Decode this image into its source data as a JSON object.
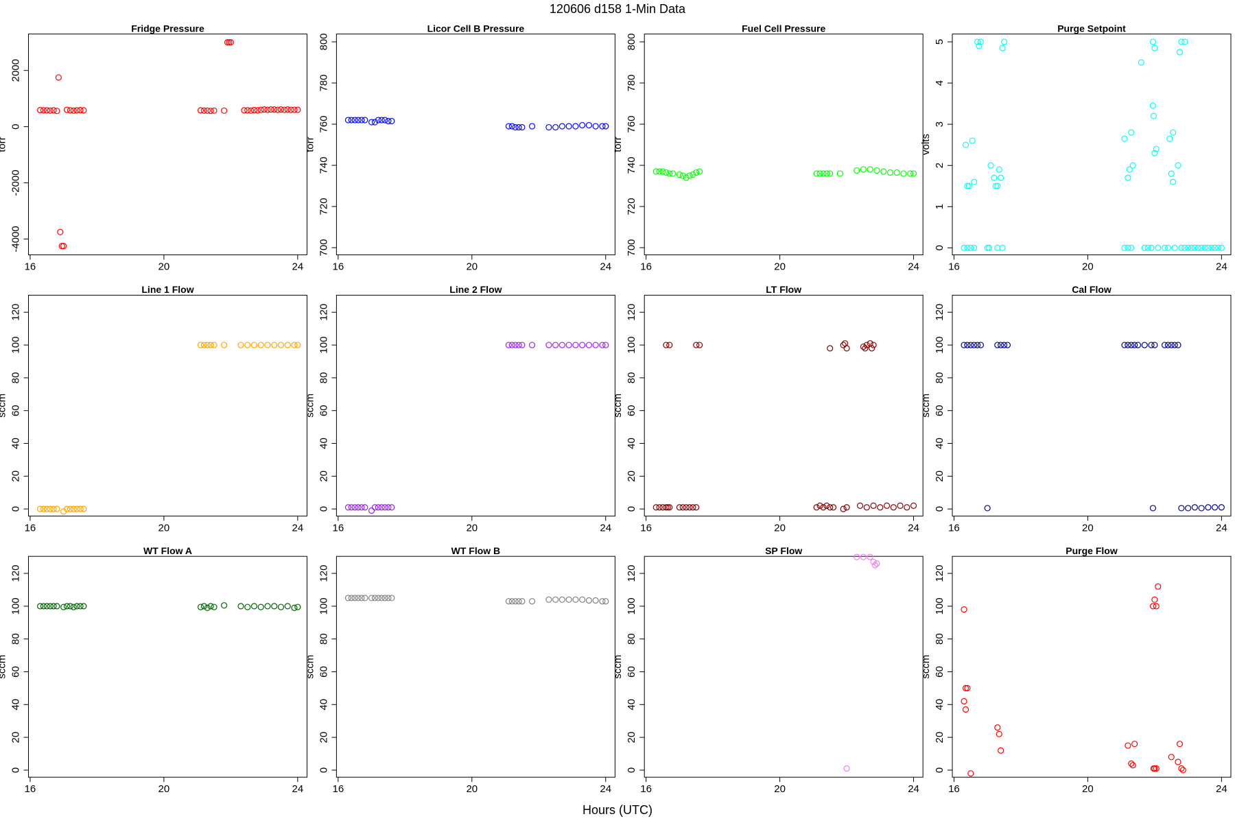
{
  "title": "120606   d158   1-Min Data",
  "xlabel": "Hours (UTC)",
  "chart_data": [
    {
      "type": "scatter",
      "title": "Fridge Pressure",
      "ylabel": "torr",
      "color": "#ff0000",
      "x": [
        16.3,
        16.4,
        16.5,
        16.6,
        16.7,
        16.8,
        16.85,
        16.9,
        16.95,
        17.0,
        17.1,
        17.2,
        17.3,
        17.4,
        17.5,
        17.6,
        21.1,
        21.2,
        21.3,
        21.4,
        21.5,
        21.8,
        21.9,
        21.95,
        22.0,
        22.4,
        22.5,
        22.6,
        22.7,
        22.8,
        22.9,
        23.0,
        23.1,
        23.2,
        23.3,
        23.4,
        23.5,
        23.6,
        23.7,
        23.8,
        23.9,
        24.0
      ],
      "y": [
        590,
        580,
        580,
        570,
        580,
        560,
        1750,
        -3750,
        -4250,
        -4250,
        600,
        580,
        570,
        580,
        590,
        580,
        580,
        570,
        570,
        560,
        570,
        570,
        3000,
        3000,
        3000,
        580,
        580,
        570,
        590,
        580,
        600,
        610,
        600,
        610,
        610,
        600,
        610,
        600,
        610,
        600,
        600,
        600
      ],
      "xlim": [
        15.95,
        24.28
      ],
      "xticks": [
        16,
        20,
        24
      ],
      "ylim": [
        -4563,
        3296
      ],
      "yticks": [
        -4000,
        -2000,
        0,
        2000
      ]
    },
    {
      "type": "scatter",
      "title": "Licor Cell B Pressure",
      "ylabel": "torr",
      "color": "#0000ff",
      "x": [
        16.3,
        16.4,
        16.5,
        16.6,
        16.7,
        16.8,
        17.0,
        17.1,
        17.2,
        17.3,
        17.4,
        17.5,
        17.6,
        21.1,
        21.2,
        21.3,
        21.4,
        21.5,
        21.8,
        22.3,
        22.5,
        22.7,
        22.9,
        23.1,
        23.3,
        23.5,
        23.7,
        23.9,
        24.0
      ],
      "y": [
        762,
        762,
        762,
        762,
        762,
        762,
        761,
        761,
        762,
        762,
        762,
        761.5,
        761.5,
        759,
        759,
        758.5,
        758.5,
        758.5,
        759,
        758.5,
        758.5,
        759,
        759,
        759,
        759.5,
        759.5,
        759,
        759,
        759
      ],
      "xlim": [
        15.95,
        24.28
      ],
      "xticks": [
        16,
        20,
        24
      ],
      "ylim": [
        696.5,
        803.8
      ],
      "yticks": [
        700,
        720,
        740,
        760,
        780,
        800
      ]
    },
    {
      "type": "scatter",
      "title": "Fuel Cell Pressure",
      "ylabel": "torr",
      "color": "#00ff00",
      "x": [
        16.3,
        16.4,
        16.5,
        16.6,
        16.7,
        16.8,
        17.0,
        17.1,
        17.2,
        17.3,
        17.4,
        17.5,
        17.6,
        21.1,
        21.2,
        21.3,
        21.4,
        21.5,
        21.8,
        22.3,
        22.5,
        22.7,
        22.9,
        23.1,
        23.3,
        23.5,
        23.7,
        23.9,
        24.0
      ],
      "y": [
        737,
        737,
        737,
        736.5,
        736,
        736,
        735.5,
        735,
        734,
        735,
        735.5,
        736.5,
        737,
        736,
        736,
        736,
        736,
        736,
        736,
        737.5,
        738,
        738,
        737.5,
        737,
        736.5,
        736.5,
        736,
        736,
        736
      ],
      "xlim": [
        15.95,
        24.28
      ],
      "xticks": [
        16,
        20,
        24
      ],
      "ylim": [
        696.5,
        803.8
      ],
      "yticks": [
        700,
        720,
        740,
        760,
        780,
        800
      ]
    },
    {
      "type": "scatter",
      "title": "Purge Setpoint",
      "ylabel": "volts",
      "color": "#00ffff",
      "x": [
        16.3,
        16.4,
        16.5,
        16.6,
        16.35,
        16.4,
        16.45,
        16.55,
        16.6,
        16.7,
        16.8,
        16.75,
        17.0,
        17.05,
        17.1,
        17.2,
        17.25,
        17.3,
        17.35,
        17.4,
        17.45,
        17.5,
        17.45,
        17.3,
        21.1,
        21.2,
        21.3,
        21.1,
        21.2,
        21.25,
        21.3,
        21.35,
        21.6,
        21.7,
        21.8,
        21.9,
        21.95,
        21.97,
        22.0,
        22.05,
        21.95,
        22.0,
        22.1,
        22.3,
        22.4,
        22.45,
        22.55,
        22.5,
        22.55,
        22.7,
        22.75,
        22.8,
        22.9,
        22.6,
        22.8,
        22.9,
        23.0,
        23.1,
        23.2,
        23.3,
        23.4,
        23.5,
        23.6,
        23.7,
        23.8,
        23.9,
        24.0
      ],
      "y": [
        0,
        0,
        0,
        0,
        2.5,
        1.5,
        1.5,
        2.6,
        1.6,
        5,
        5,
        4.9,
        0,
        0,
        2.0,
        1.7,
        1.5,
        1.5,
        1.9,
        1.7,
        0,
        5,
        4.85,
        0,
        0,
        0,
        0,
        2.65,
        1.7,
        1.9,
        2.8,
        2.0,
        4.5,
        0,
        0,
        0,
        3.45,
        3.2,
        2.3,
        2.4,
        5,
        4.85,
        0,
        0,
        0,
        2.65,
        2.8,
        1.8,
        1.6,
        2.0,
        4.75,
        5,
        5,
        0,
        0,
        0,
        0,
        0,
        0,
        0,
        0,
        0,
        0,
        0,
        0,
        0,
        0
      ],
      "xlim": [
        15.95,
        24.28
      ],
      "xticks": [
        16,
        20,
        24
      ],
      "ylim": [
        -0.17,
        5.19
      ],
      "yticks": [
        0,
        1,
        2,
        3,
        4,
        5
      ]
    },
    {
      "type": "scatter",
      "title": "Line 1 Flow",
      "ylabel": "sccm",
      "color": "#ffa500",
      "x": [
        16.3,
        16.4,
        16.5,
        16.6,
        16.7,
        16.8,
        17.0,
        17.1,
        17.2,
        17.3,
        17.4,
        17.5,
        17.6,
        21.1,
        21.2,
        21.3,
        21.4,
        21.5,
        21.8,
        22.3,
        22.5,
        22.7,
        22.9,
        23.1,
        23.3,
        23.5,
        23.7,
        23.9,
        24.0
      ],
      "y": [
        0,
        0,
        0,
        0,
        0,
        0,
        -1.5,
        0,
        0,
        0,
        0,
        0,
        0,
        100,
        100,
        100,
        100,
        100,
        100,
        100,
        100,
        100,
        100,
        100,
        100,
        100,
        100,
        100,
        100
      ],
      "xlim": [
        15.95,
        24.28
      ],
      "xticks": [
        16,
        20,
        24
      ],
      "ylim": [
        -4.3,
        130.4
      ],
      "yticks": [
        0,
        20,
        40,
        60,
        80,
        100,
        120
      ]
    },
    {
      "type": "scatter",
      "title": "Line 2 Flow",
      "ylabel": "sccm",
      "color": "#a020f0",
      "x": [
        16.3,
        16.4,
        16.5,
        16.6,
        16.7,
        16.8,
        17.0,
        17.1,
        17.2,
        17.3,
        17.4,
        17.5,
        17.6,
        21.1,
        21.2,
        21.3,
        21.4,
        21.5,
        21.8,
        22.3,
        22.5,
        22.7,
        22.9,
        23.1,
        23.3,
        23.5,
        23.7,
        23.9,
        24.0
      ],
      "y": [
        1,
        1,
        1,
        1,
        1,
        1,
        -1,
        1,
        1,
        1,
        1,
        1,
        1,
        100,
        100,
        100,
        100,
        100,
        100,
        100,
        100,
        100,
        100,
        100,
        100,
        100,
        100,
        100,
        100
      ],
      "xlim": [
        15.95,
        24.28
      ],
      "xticks": [
        16,
        20,
        24
      ],
      "ylim": [
        -4.3,
        130.4
      ],
      "yticks": [
        0,
        20,
        40,
        60,
        80,
        100,
        120
      ]
    },
    {
      "type": "scatter",
      "title": "LT Flow",
      "ylabel": "sccm",
      "color": "#8b0000",
      "x": [
        16.3,
        16.4,
        16.5,
        16.6,
        16.65,
        16.7,
        16.6,
        16.7,
        17.0,
        17.1,
        17.2,
        17.3,
        17.4,
        17.5,
        17.5,
        17.6,
        21.1,
        21.2,
        21.3,
        21.4,
        21.5,
        21.6,
        21.5,
        21.9,
        21.95,
        22.0,
        21.9,
        22.0,
        22.5,
        22.6,
        22.7,
        22.8,
        22.55,
        22.75,
        22.4,
        22.6,
        22.8,
        23.0,
        23.2,
        23.4,
        23.6,
        23.8,
        24.0
      ],
      "y": [
        1,
        1,
        1,
        1,
        1,
        1,
        100,
        100,
        1,
        1,
        1,
        1,
        1,
        1,
        100,
        100,
        1,
        2,
        1,
        2,
        1,
        1,
        98,
        100,
        101,
        98,
        0,
        1,
        99,
        100,
        101,
        100,
        98,
        98,
        2,
        1,
        2,
        1,
        2,
        1,
        2,
        1,
        2
      ],
      "xlim": [
        15.95,
        24.28
      ],
      "xticks": [
        16,
        20,
        24
      ],
      "ylim": [
        -4.3,
        130.4
      ],
      "yticks": [
        0,
        20,
        40,
        60,
        80,
        100,
        120
      ]
    },
    {
      "type": "scatter",
      "title": "Cal Flow",
      "ylabel": "sccm",
      "color": "#00008b",
      "x": [
        16.3,
        16.4,
        16.5,
        16.6,
        16.7,
        16.8,
        17.0,
        17.3,
        17.4,
        17.5,
        17.6,
        21.1,
        21.2,
        21.3,
        21.4,
        21.5,
        21.7,
        21.9,
        22.0,
        21.95,
        22.3,
        22.4,
        22.5,
        22.6,
        22.7,
        22.8,
        23.0,
        23.2,
        23.4,
        23.6,
        23.8,
        24.0
      ],
      "y": [
        100,
        100,
        100,
        100,
        100,
        100,
        0.5,
        100,
        100,
        100,
        100,
        100,
        100,
        100,
        100,
        100,
        100,
        100,
        100,
        0.5,
        100,
        100,
        100,
        100,
        100,
        0.5,
        0.5,
        1,
        0.5,
        1,
        1,
        1
      ],
      "xlim": [
        15.95,
        24.28
      ],
      "xticks": [
        16,
        20,
        24
      ],
      "ylim": [
        -4.3,
        130.4
      ],
      "yticks": [
        0,
        20,
        40,
        60,
        80,
        100,
        120
      ]
    },
    {
      "type": "scatter",
      "title": "WT Flow A",
      "ylabel": "sccm",
      "color": "#006400",
      "x": [
        16.3,
        16.4,
        16.5,
        16.6,
        16.7,
        16.8,
        17.0,
        17.1,
        17.2,
        17.3,
        17.4,
        17.5,
        17.6,
        21.1,
        21.2,
        21.3,
        21.4,
        21.5,
        21.8,
        22.3,
        22.5,
        22.7,
        22.9,
        23.1,
        23.3,
        23.5,
        23.7,
        23.9,
        24.0
      ],
      "y": [
        100,
        100,
        100,
        100,
        100,
        100,
        99.5,
        100,
        100,
        99.5,
        100,
        100,
        100,
        99.5,
        100,
        99,
        100,
        99.5,
        100.5,
        100,
        99.5,
        100,
        99.5,
        100,
        100,
        99.5,
        100,
        99,
        99.5
      ],
      "xlim": [
        15.95,
        24.28
      ],
      "xticks": [
        16,
        20,
        24
      ],
      "ylim": [
        -4.3,
        130.4
      ],
      "yticks": [
        0,
        20,
        40,
        60,
        80,
        100,
        120
      ]
    },
    {
      "type": "scatter",
      "title": "WT Flow B",
      "ylabel": "sccm",
      "color": "#808080",
      "x": [
        16.3,
        16.4,
        16.5,
        16.6,
        16.7,
        16.8,
        17.0,
        17.1,
        17.2,
        17.3,
        17.4,
        17.5,
        17.6,
        21.1,
        21.2,
        21.3,
        21.4,
        21.5,
        21.8,
        22.3,
        22.5,
        22.7,
        22.9,
        23.1,
        23.3,
        23.5,
        23.7,
        23.9,
        24.0
      ],
      "y": [
        105,
        105,
        105,
        105,
        105,
        105,
        105,
        105,
        105,
        105,
        105,
        105,
        105,
        103,
        103,
        103,
        103,
        103,
        103,
        104,
        104,
        104,
        104,
        104,
        104,
        103.5,
        103.5,
        103,
        103
      ],
      "xlim": [
        15.95,
        24.28
      ],
      "xticks": [
        16,
        20,
        24
      ],
      "ylim": [
        -4.3,
        130.4
      ],
      "yticks": [
        0,
        20,
        40,
        60,
        80,
        100,
        120
      ]
    },
    {
      "type": "scatter",
      "title": "SP Flow",
      "ylabel": "sccm",
      "color": "#ee82ee",
      "x": [
        22.3,
        22.5,
        22.7,
        22.8,
        22.9,
        22.85,
        22.0
      ],
      "y": [
        130,
        130,
        130,
        127,
        126,
        125,
        1
      ],
      "xlim": [
        15.95,
        24.28
      ],
      "xticks": [
        16,
        20,
        24
      ],
      "ylim": [
        -4.3,
        130.4
      ],
      "yticks": [
        0,
        20,
        40,
        60,
        80,
        100,
        120
      ]
    },
    {
      "type": "scatter",
      "title": "Purge Flow",
      "ylabel": "sccm",
      "color": "#ff0000",
      "x": [
        16.3,
        16.35,
        16.4,
        16.3,
        16.35,
        16.5,
        17.3,
        17.35,
        17.4,
        21.2,
        21.3,
        21.35,
        21.4,
        21.95,
        22.0,
        22.05,
        22.1,
        21.97,
        22.0,
        22.05,
        22.5,
        22.7,
        22.75,
        22.8,
        22.85
      ],
      "y": [
        98,
        50,
        50,
        42,
        37,
        -2,
        26,
        22,
        12,
        15,
        4,
        3,
        16,
        100,
        104,
        100,
        112,
        1,
        1,
        1,
        8,
        5,
        16,
        1,
        0
      ],
      "xlim": [
        15.95,
        24.28
      ],
      "xticks": [
        16,
        20,
        24
      ],
      "ylim": [
        -4.3,
        130.4
      ],
      "yticks": [
        0,
        20,
        40,
        60,
        80,
        100,
        120
      ]
    }
  ]
}
